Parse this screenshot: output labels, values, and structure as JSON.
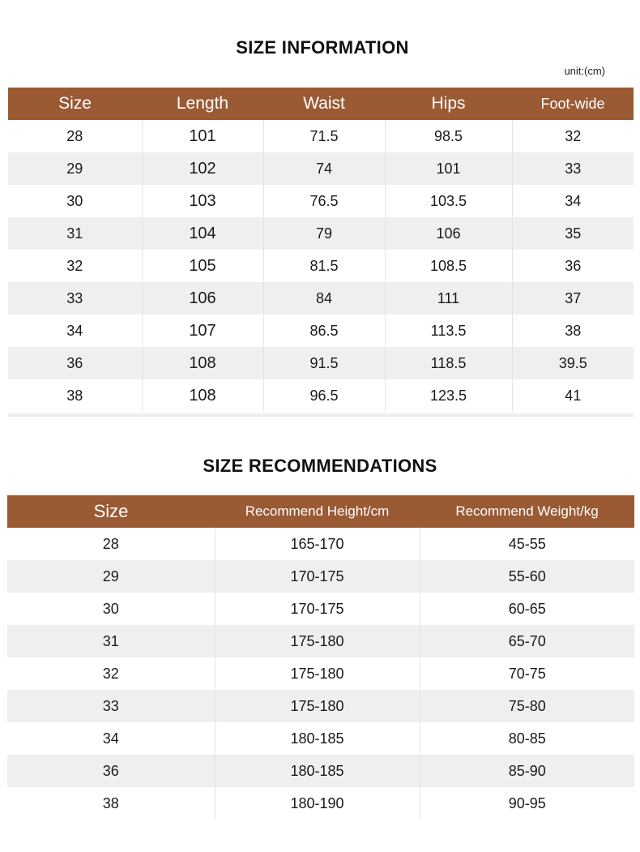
{
  "size_information": {
    "title": "SIZE INFORMATION",
    "unit": "unit:(cm)",
    "headers": [
      "Size",
      "Length",
      "Waist",
      "Hips",
      "Foot-wide"
    ],
    "rows": [
      [
        "28",
        "101",
        "71.5",
        "98.5",
        "32"
      ],
      [
        "29",
        "102",
        "74",
        "101",
        "33"
      ],
      [
        "30",
        "103",
        "76.5",
        "103.5",
        "34"
      ],
      [
        "31",
        "104",
        "79",
        "106",
        "35"
      ],
      [
        "32",
        "105",
        "81.5",
        "108.5",
        "36"
      ],
      [
        "33",
        "106",
        "84",
        "111",
        "37"
      ],
      [
        "34",
        "107",
        "86.5",
        "113.5",
        "38"
      ],
      [
        "36",
        "108",
        "91.5",
        "118.5",
        "39.5"
      ],
      [
        "38",
        "108",
        "96.5",
        "123.5",
        "41"
      ]
    ]
  },
  "size_recommendations": {
    "title": "SIZE RECOMMENDATIONS",
    "headers": [
      "Size",
      "Recommend Height/cm",
      "Recommend Weight/kg"
    ],
    "rows": [
      [
        "28",
        "165-170",
        "45-55"
      ],
      [
        "29",
        "170-175",
        "55-60"
      ],
      [
        "30",
        "170-175",
        "60-65"
      ],
      [
        "31",
        "175-180",
        "65-70"
      ],
      [
        "32",
        "175-180",
        "70-75"
      ],
      [
        "33",
        "175-180",
        "75-80"
      ],
      [
        "34",
        "180-185",
        "80-85"
      ],
      [
        "36",
        "180-185",
        "85-90"
      ],
      [
        "38",
        "180-190",
        "90-95"
      ]
    ]
  },
  "colors": {
    "header_bg": "#9a5a34",
    "header_text": "#ffffff",
    "stripe_row": "#efefef"
  }
}
